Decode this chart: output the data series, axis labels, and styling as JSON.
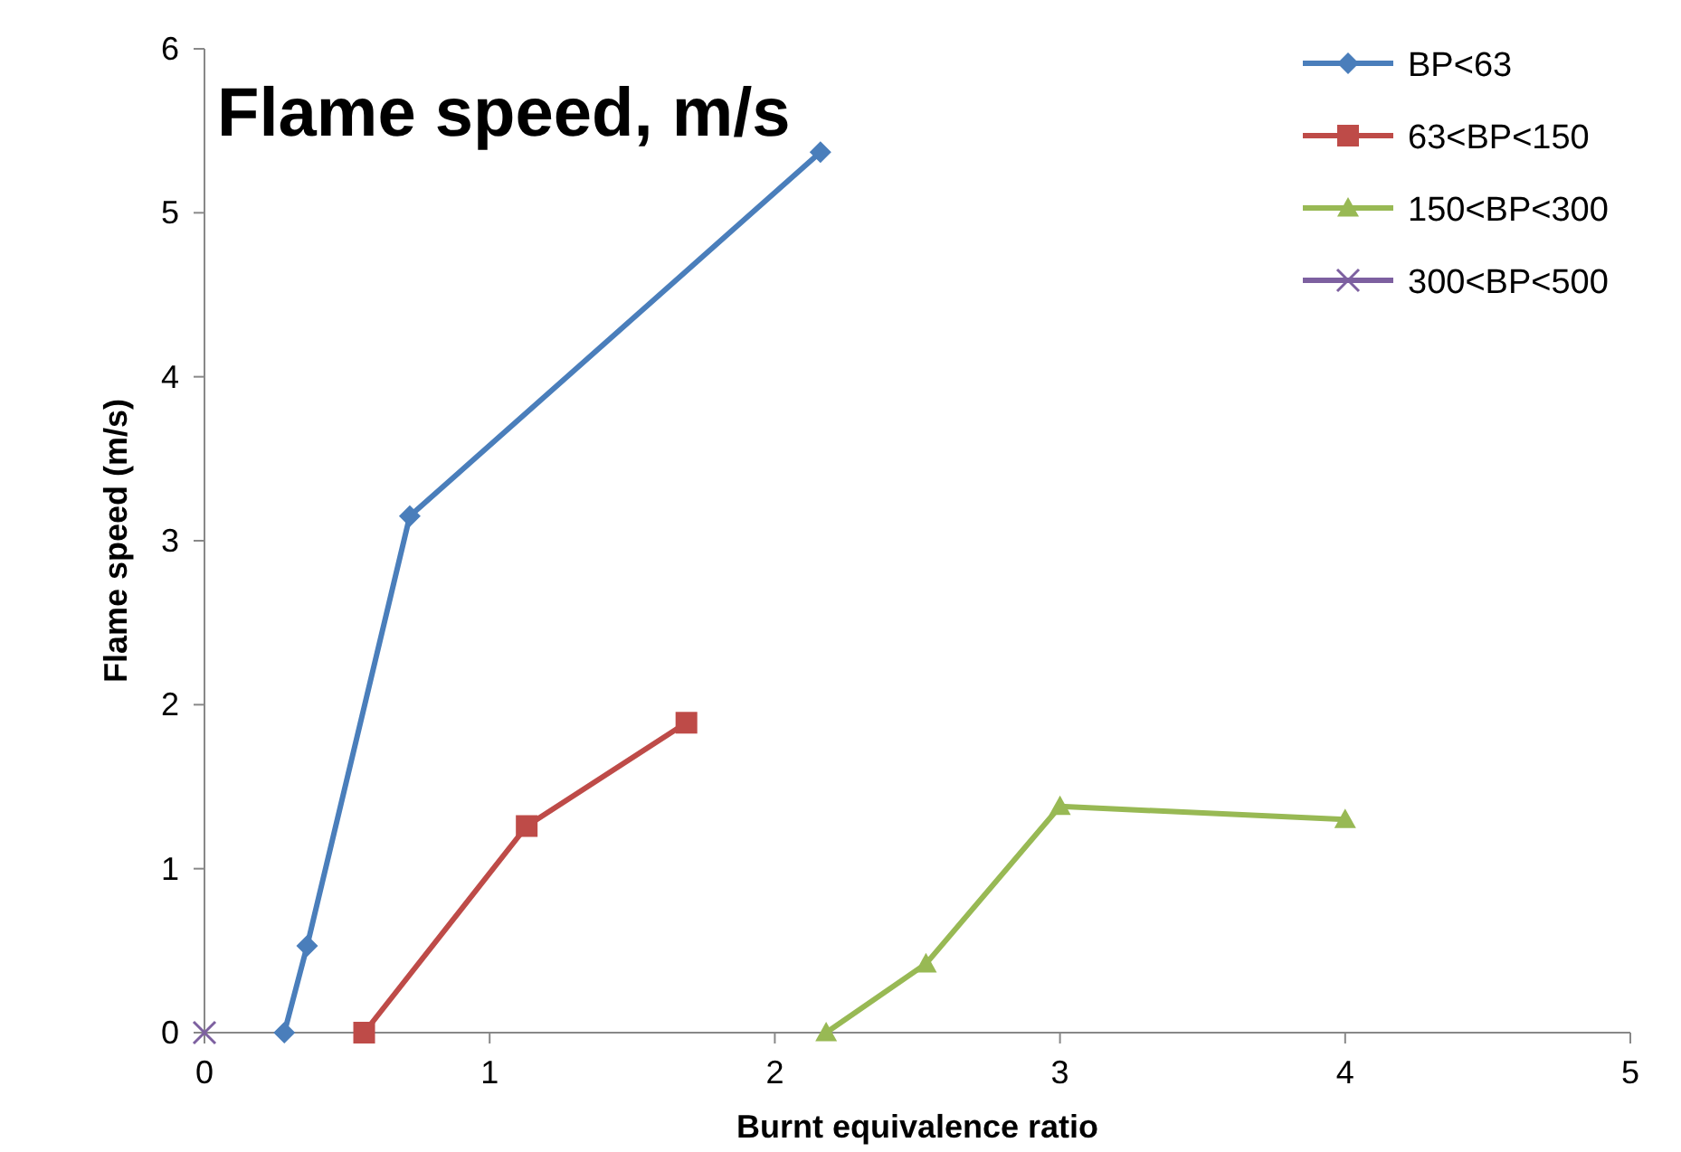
{
  "chart_data": {
    "type": "line",
    "title": "Flame speed, m/s",
    "xlabel": "Burnt equivalence ratio",
    "ylabel": "Flame speed (m/s)",
    "xlim": [
      0,
      5
    ],
    "xticks": [
      0,
      1,
      2,
      3,
      4,
      5
    ],
    "ylim": [
      0,
      6
    ],
    "yticks": [
      0,
      1,
      2,
      3,
      4,
      5,
      6
    ],
    "grid": false,
    "legend": "top right",
    "series": [
      {
        "name": "BP<63",
        "color": "#4a7ebb",
        "marker": "diamond",
        "x": [
          0.28,
          0.36,
          0.72,
          2.16
        ],
        "values": [
          0,
          0.53,
          3.15,
          5.37
        ]
      },
      {
        "name": "63<BP<150",
        "color": "#be4b48",
        "marker": "square",
        "x": [
          0.56,
          1.13,
          1.69
        ],
        "values": [
          0,
          1.26,
          1.89
        ]
      },
      {
        "name": "150<BP<300",
        "color": "#98b954",
        "marker": "triangle",
        "x": [
          2.18,
          2.53,
          3.0,
          4.0
        ],
        "values": [
          0,
          0.42,
          1.38,
          1.3
        ]
      },
      {
        "name": "300<BP<500",
        "color": "#7d60a0",
        "marker": "cross",
        "x": [
          0
        ],
        "values": [
          0
        ]
      }
    ]
  }
}
